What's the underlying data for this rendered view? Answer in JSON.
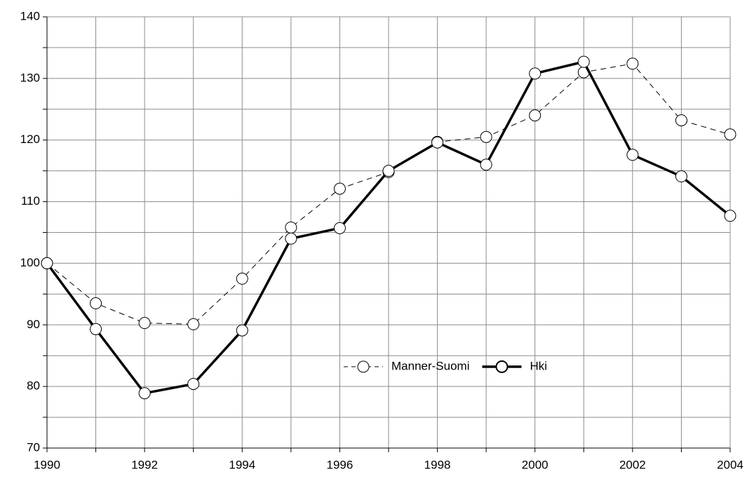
{
  "chart_data": {
    "type": "line",
    "x": [
      1990,
      1991,
      1992,
      1993,
      1994,
      1995,
      1996,
      1997,
      1998,
      1999,
      2000,
      2001,
      2002,
      2003,
      2004
    ],
    "series": [
      {
        "name": "Manner-Suomi",
        "color": "#000000",
        "line_style": "dashed",
        "values": [
          100,
          93.5,
          90.3,
          90.1,
          97.5,
          105.8,
          112.1,
          114.8,
          119.7,
          120.5,
          124,
          131,
          132.4,
          123.2,
          120.9
        ]
      },
      {
        "name": "Hki",
        "color": "#000000",
        "line_style": "solid",
        "values": [
          100,
          89.3,
          78.9,
          80.4,
          89.1,
          104,
          105.7,
          115,
          119.6,
          116,
          130.8,
          132.7,
          117.6,
          114.1,
          107.7
        ]
      }
    ],
    "xlim": [
      1990,
      2004
    ],
    "xticks": [
      1990,
      1992,
      1994,
      1996,
      1998,
      2000,
      2002,
      2004
    ],
    "xticks_minor": [
      1991,
      1993,
      1995,
      1997,
      1999,
      2001,
      2003
    ],
    "ylim": [
      70,
      140
    ],
    "yticks": [
      70,
      80,
      90,
      100,
      110,
      120,
      130,
      140
    ],
    "yticks_minor": [
      75,
      85,
      95,
      105,
      115,
      125,
      135
    ],
    "grid": true,
    "legend": "bottom-center"
  }
}
